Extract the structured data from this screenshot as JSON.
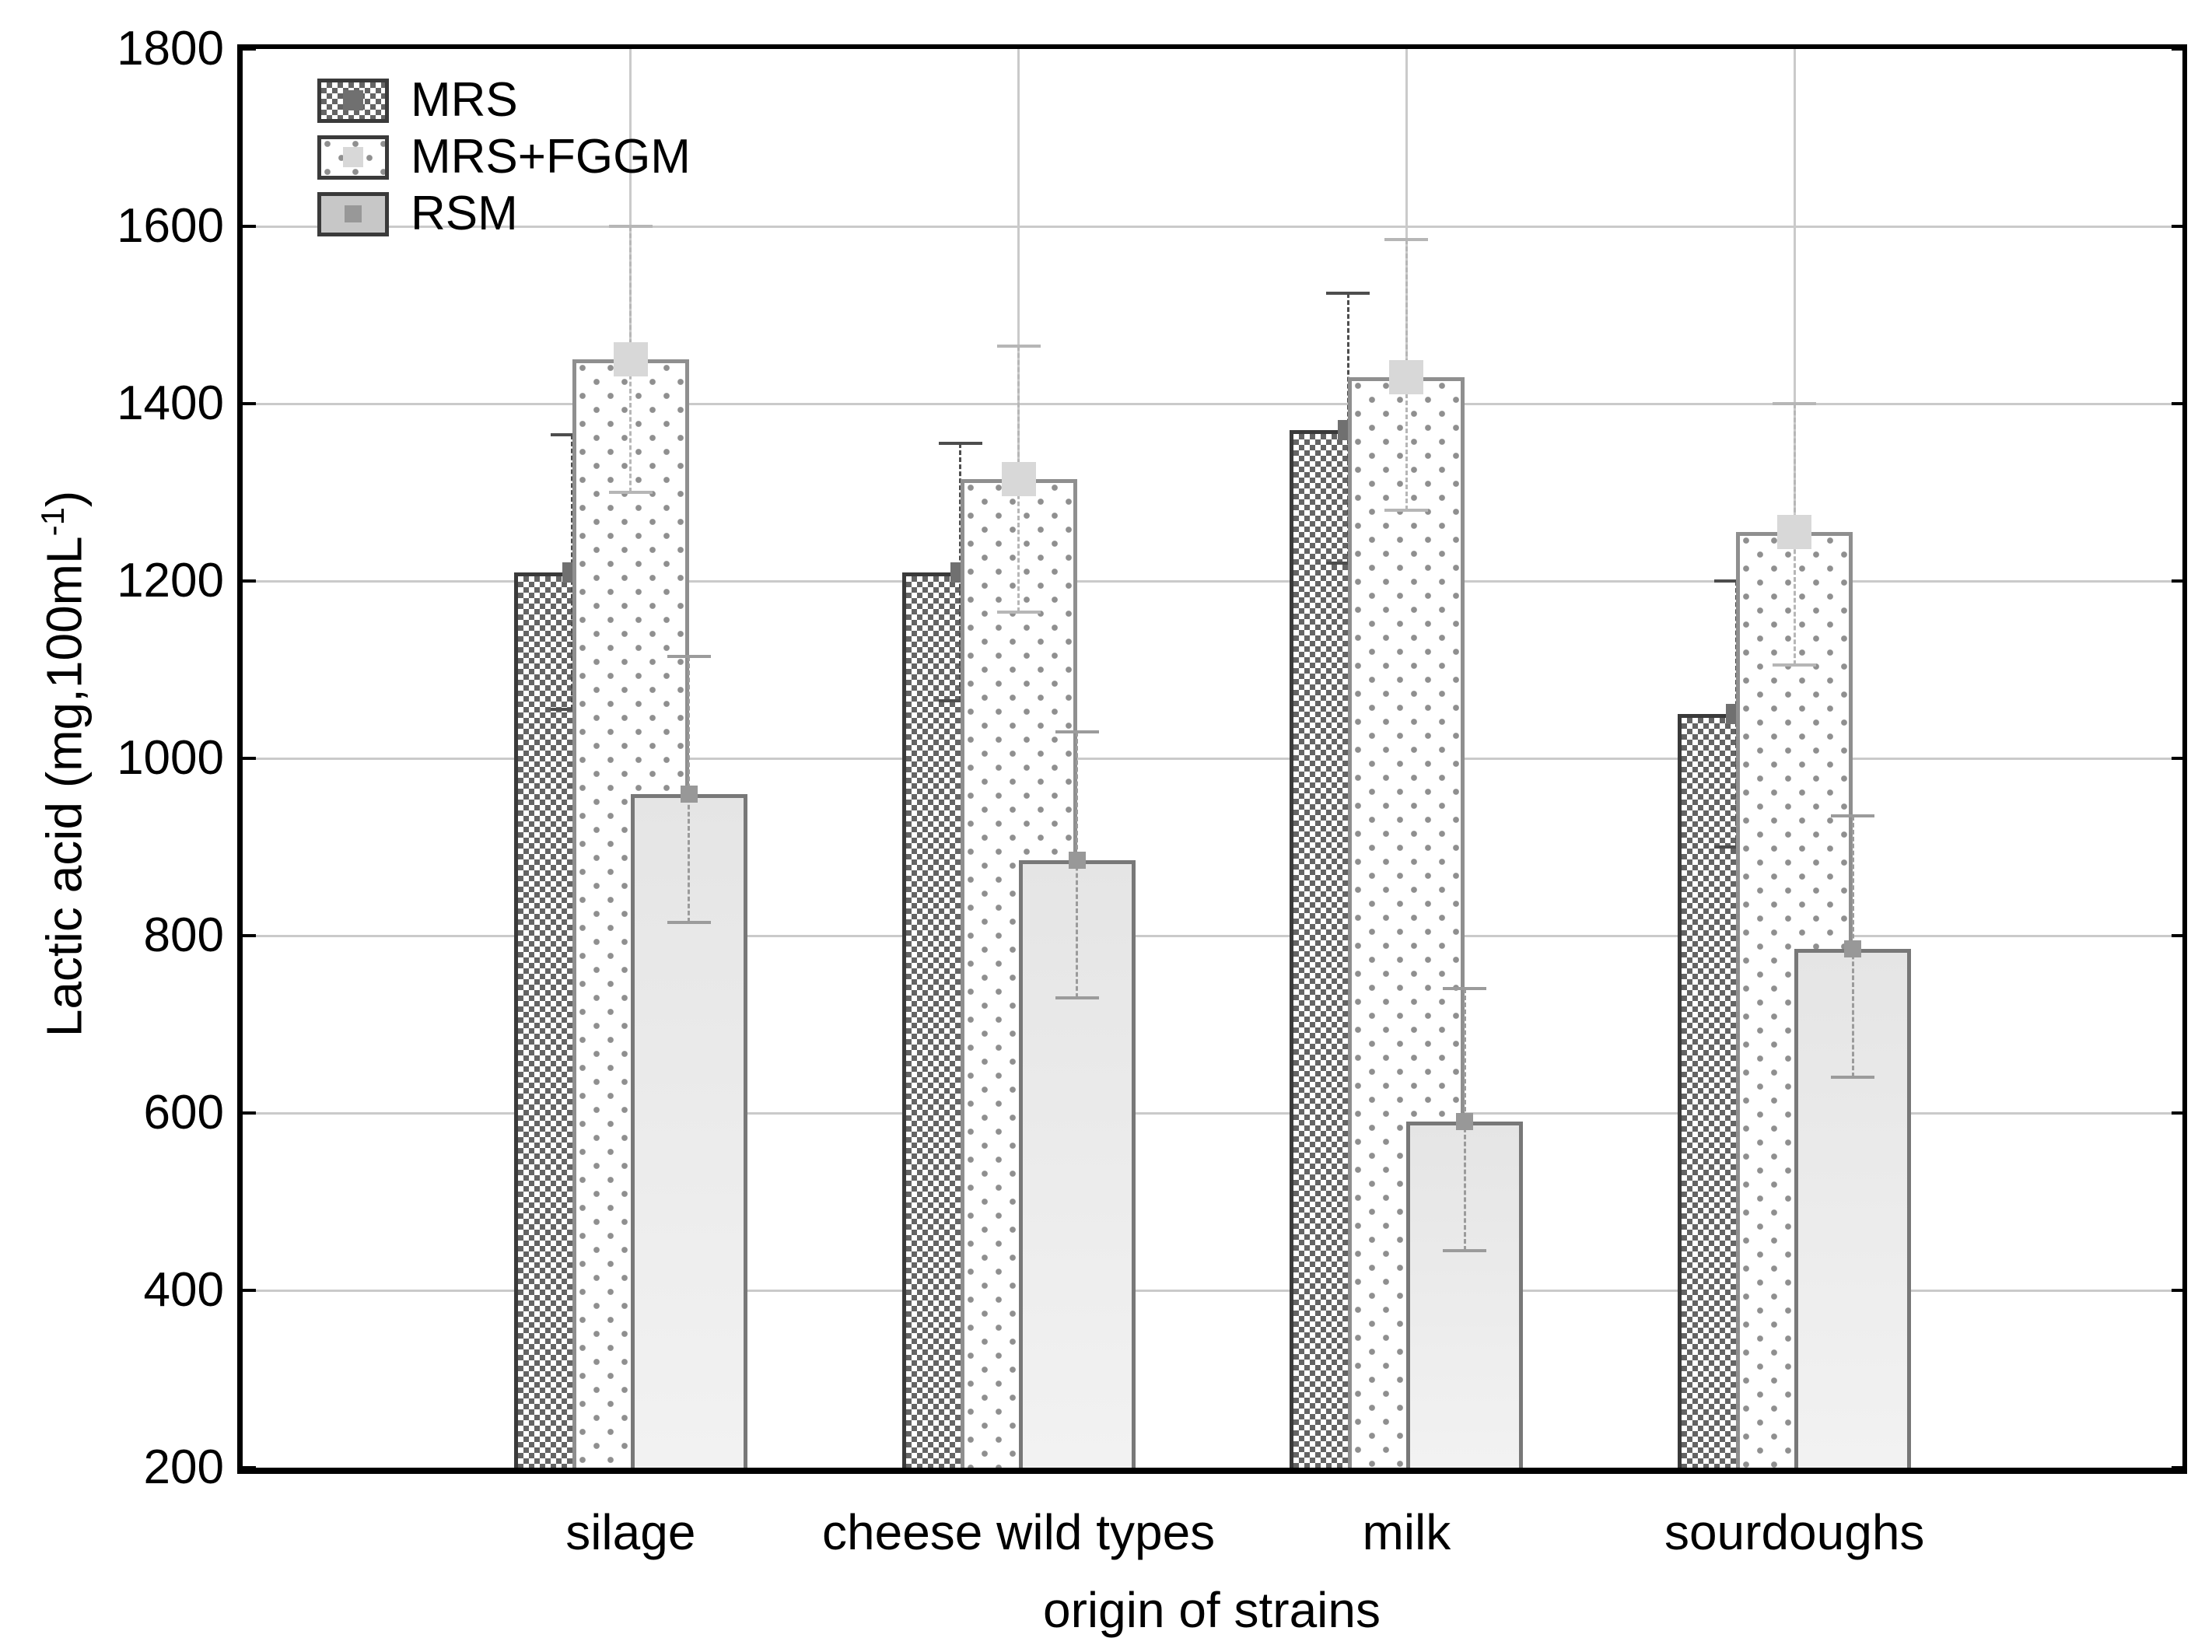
{
  "chart_data": {
    "type": "bar",
    "title": "",
    "xlabel": "origin of strains",
    "ylabel": "Lactic acid  (mg,100mL-1)",
    "ylabel_parts": {
      "main": "Lactic acid  (mg,100mL",
      "sup": "-1",
      "close": ")"
    },
    "categories": [
      "silage",
      "cheese wild types",
      "milk",
      "sourdoughs"
    ],
    "ylim": [
      200,
      1800
    ],
    "yticks": [
      200,
      400,
      600,
      800,
      1000,
      1200,
      1400,
      1600,
      1800
    ],
    "grid": {
      "horizontal": true,
      "vertical": true
    },
    "legend_position": "top-left",
    "series": [
      {
        "name": "MRS",
        "values": [
          1210,
          1210,
          1370,
          1050
        ],
        "err_low": [
          1055,
          1065,
          1220,
          900
        ],
        "err_high": [
          1365,
          1355,
          1525,
          1200
        ],
        "pattern": "checker",
        "err_color": "#4d4d4d",
        "marker_color": "#707070",
        "marker_size": 26
      },
      {
        "name": "MRS+FGGM",
        "values": [
          1450,
          1315,
          1430,
          1255
        ],
        "err_low": [
          1300,
          1165,
          1280,
          1105
        ],
        "err_high": [
          1600,
          1465,
          1585,
          1400
        ],
        "pattern": "dots",
        "err_color": "#b6b6b6",
        "marker_color": "#d8d8d8",
        "marker_size": 44
      },
      {
        "name": "RSM",
        "values": [
          960,
          885,
          590,
          785
        ],
        "err_low": [
          815,
          730,
          445,
          640
        ],
        "err_high": [
          1115,
          1030,
          740,
          935
        ],
        "pattern": "solid",
        "err_color": "#9b9b9b",
        "marker_color": "#989898",
        "marker_size": 22
      }
    ],
    "colors": {
      "grid": "#cacaca",
      "axis": "#000000",
      "text": "#000000"
    }
  },
  "legend": {
    "items": [
      {
        "label": "MRS",
        "pattern": "checker"
      },
      {
        "label": "MRS+FGGM",
        "pattern": "dots"
      },
      {
        "label": "RSM",
        "pattern": "solid-dark"
      }
    ]
  }
}
